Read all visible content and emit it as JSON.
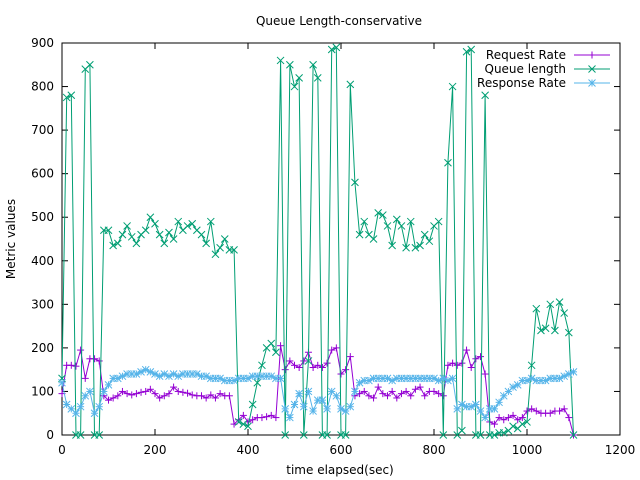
{
  "chart_data": {
    "type": "line",
    "title": "Queue Length-conservative",
    "xlabel": "time elapsed(sec)",
    "ylabel": "Metric values",
    "xlim": [
      0,
      1200
    ],
    "ylim": [
      0,
      900
    ],
    "xticks": [
      "0",
      "200",
      "400",
      "600",
      "800",
      "1000",
      "1200"
    ],
    "yticks": [
      "0",
      "100",
      "200",
      "300",
      "400",
      "500",
      "600",
      "700",
      "800",
      "900"
    ],
    "grid": false,
    "legend_position": "top-right",
    "series": [
      {
        "name": "Request Rate",
        "color": "#9400d3",
        "marker": "plus",
        "x": [
          0,
          10,
          20,
          30,
          40,
          50,
          60,
          70,
          80,
          90,
          100,
          110,
          120,
          130,
          140,
          150,
          160,
          170,
          180,
          190,
          200,
          210,
          220,
          230,
          240,
          250,
          260,
          270,
          280,
          290,
          300,
          310,
          320,
          330,
          340,
          350,
          360,
          370,
          380,
          390,
          400,
          410,
          420,
          430,
          440,
          450,
          460,
          470,
          480,
          490,
          500,
          510,
          520,
          530,
          540,
          550,
          560,
          570,
          580,
          590,
          600,
          610,
          620,
          630,
          640,
          650,
          660,
          670,
          680,
          690,
          700,
          710,
          720,
          730,
          740,
          750,
          760,
          770,
          780,
          790,
          800,
          810,
          820,
          830,
          840,
          850,
          860,
          870,
          880,
          890,
          900,
          910,
          920,
          930,
          940,
          950,
          960,
          970,
          980,
          990,
          1000,
          1010,
          1020,
          1030,
          1040,
          1050,
          1060,
          1070,
          1080,
          1090,
          1100
        ],
        "y": [
          95,
          160,
          160,
          158,
          195,
          130,
          175,
          175,
          170,
          90,
          80,
          85,
          90,
          100,
          95,
          92,
          95,
          98,
          100,
          105,
          95,
          85,
          90,
          95,
          110,
          100,
          98,
          96,
          92,
          90,
          90,
          85,
          92,
          85,
          95,
          90,
          90,
          25,
          35,
          45,
          30,
          35,
          40,
          40,
          42,
          45,
          40,
          205,
          150,
          170,
          160,
          155,
          170,
          190,
          155,
          160,
          155,
          165,
          195,
          200,
          140,
          150,
          180,
          90,
          95,
          100,
          90,
          85,
          110,
          95,
          90,
          100,
          85,
          95,
          100,
          90,
          105,
          110,
          90,
          100,
          100,
          95,
          90,
          160,
          165,
          160,
          165,
          195,
          155,
          175,
          180,
          140,
          30,
          25,
          40,
          35,
          40,
          45,
          35,
          40,
          55,
          60,
          55,
          50,
          50,
          50,
          55,
          55,
          60,
          40,
          0
        ]
      },
      {
        "name": "Queue length",
        "color": "#009e73",
        "marker": "x",
        "x": [
          0,
          10,
          20,
          30,
          40,
          50,
          60,
          70,
          80,
          90,
          100,
          110,
          120,
          130,
          140,
          150,
          160,
          170,
          180,
          190,
          200,
          210,
          220,
          230,
          240,
          250,
          260,
          270,
          280,
          290,
          300,
          310,
          320,
          330,
          340,
          350,
          360,
          370,
          380,
          390,
          400,
          410,
          420,
          430,
          440,
          450,
          460,
          470,
          480,
          490,
          500,
          510,
          520,
          530,
          540,
          550,
          560,
          570,
          580,
          590,
          600,
          610,
          620,
          630,
          640,
          650,
          660,
          670,
          680,
          690,
          700,
          710,
          720,
          730,
          740,
          750,
          760,
          770,
          780,
          790,
          800,
          810,
          820,
          830,
          840,
          850,
          860,
          870,
          880,
          890,
          900,
          910,
          920,
          930,
          940,
          950,
          960,
          970,
          980,
          990,
          1000,
          1010,
          1020,
          1030,
          1040,
          1050,
          1060,
          1070,
          1080,
          1090,
          1100
        ],
        "y": [
          130,
          775,
          780,
          0,
          0,
          840,
          850,
          0,
          0,
          470,
          470,
          435,
          440,
          460,
          480,
          455,
          440,
          460,
          470,
          500,
          485,
          460,
          440,
          465,
          450,
          490,
          470,
          480,
          485,
          470,
          460,
          440,
          490,
          415,
          430,
          450,
          425,
          425,
          30,
          25,
          20,
          70,
          120,
          160,
          200,
          210,
          190,
          860,
          0,
          850,
          800,
          820,
          0,
          170,
          850,
          820,
          0,
          0,
          885,
          890,
          0,
          0,
          805,
          580,
          460,
          490,
          460,
          450,
          510,
          505,
          480,
          435,
          495,
          480,
          430,
          490,
          430,
          435,
          460,
          445,
          480,
          490,
          0,
          625,
          800,
          0,
          10,
          880,
          885,
          0,
          0,
          780,
          0,
          0,
          5,
          5,
          10,
          20,
          15,
          25,
          30,
          160,
          290,
          240,
          245,
          300,
          240,
          305,
          280,
          235,
          0
        ]
      },
      {
        "name": "Response Rate",
        "color": "#56b4e9",
        "marker": "star",
        "x": [
          0,
          10,
          20,
          30,
          40,
          50,
          60,
          70,
          80,
          90,
          100,
          110,
          120,
          130,
          140,
          150,
          160,
          170,
          180,
          190,
          200,
          210,
          220,
          230,
          240,
          250,
          260,
          270,
          280,
          290,
          300,
          310,
          320,
          330,
          340,
          350,
          360,
          370,
          380,
          390,
          400,
          410,
          420,
          430,
          440,
          450,
          460,
          470,
          480,
          490,
          500,
          510,
          520,
          530,
          540,
          550,
          560,
          570,
          580,
          590,
          600,
          610,
          620,
          630,
          640,
          650,
          660,
          670,
          680,
          690,
          700,
          710,
          720,
          730,
          740,
          750,
          760,
          770,
          780,
          790,
          800,
          810,
          820,
          830,
          840,
          850,
          860,
          870,
          880,
          890,
          900,
          910,
          920,
          930,
          940,
          950,
          960,
          970,
          980,
          990,
          1000,
          1010,
          1020,
          1030,
          1040,
          1050,
          1060,
          1070,
          1080,
          1090,
          1100
        ],
        "y": [
          120,
          70,
          60,
          50,
          65,
          90,
          100,
          50,
          65,
          100,
          115,
          130,
          130,
          135,
          140,
          140,
          140,
          145,
          150,
          145,
          140,
          135,
          140,
          135,
          140,
          135,
          140,
          140,
          140,
          140,
          135,
          135,
          130,
          130,
          130,
          125,
          125,
          125,
          130,
          130,
          130,
          135,
          135,
          135,
          135,
          135,
          130,
          130,
          60,
          40,
          70,
          95,
          65,
          100,
          55,
          80,
          80,
          60,
          100,
          90,
          60,
          55,
          65,
          100,
          120,
          125,
          125,
          130,
          130,
          130,
          130,
          125,
          130,
          130,
          130,
          130,
          130,
          130,
          130,
          130,
          130,
          125,
          130,
          125,
          130,
          60,
          70,
          65,
          65,
          70,
          55,
          40,
          60,
          60,
          75,
          90,
          100,
          110,
          115,
          125,
          125,
          130,
          125,
          125,
          125,
          130,
          130,
          130,
          135,
          140,
          145
        ]
      }
    ]
  }
}
